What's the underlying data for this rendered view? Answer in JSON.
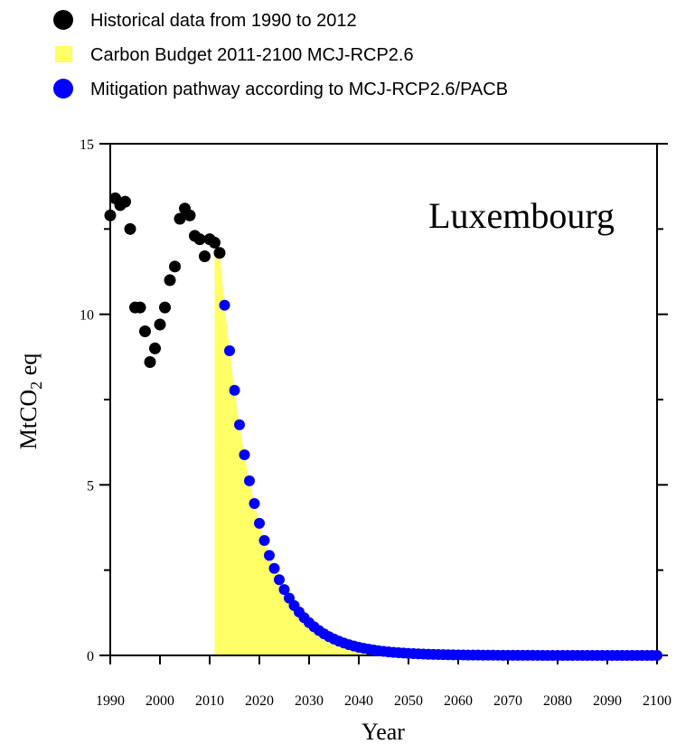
{
  "chart_data": {
    "type": "scatter",
    "annotation": "Luxembourg",
    "xlabel": "Year",
    "ylabel": {
      "main": "MtCO",
      "sub": "2",
      "suffix": " eq"
    },
    "xlim": [
      1990,
      2100
    ],
    "ylim": [
      0,
      15
    ],
    "x_ticks": [
      1990,
      2000,
      2010,
      2020,
      2030,
      2040,
      2050,
      2060,
      2070,
      2080,
      2090,
      2100
    ],
    "y_ticks": [
      0,
      5,
      10,
      15
    ],
    "legend_position": "top-left",
    "legend": [
      {
        "label": "Historical data from 1990 to 2012",
        "marker": "circle",
        "color": "#000000"
      },
      {
        "label": "Carbon Budget 2011-2100 MCJ-RCP2.6",
        "marker": "square",
        "color": "#ffff66"
      },
      {
        "label": "Mitigation pathway according to MCJ-RCP2.6/PACB",
        "marker": "circle",
        "color": "#0000ff"
      }
    ],
    "series": [
      {
        "name": "Historical data from 1990 to 2012",
        "color": "#000000",
        "x": [
          1990,
          1991,
          1992,
          1993,
          1994,
          1995,
          1996,
          1997,
          1998,
          1999,
          2000,
          2001,
          2002,
          2003,
          2004,
          2005,
          2006,
          2007,
          2008,
          2009,
          2010,
          2011,
          2012
        ],
        "y": [
          12.9,
          13.4,
          13.2,
          13.3,
          12.5,
          10.2,
          10.2,
          9.5,
          8.6,
          9.0,
          9.7,
          10.2,
          11.0,
          11.4,
          12.8,
          13.1,
          12.9,
          12.3,
          12.2,
          11.7,
          12.2,
          12.1,
          11.8
        ]
      },
      {
        "name": "Mitigation pathway according to MCJ-RCP2.6/PACB",
        "color": "#0000ff",
        "decay": {
          "x_start": 2012,
          "y_start": 11.8,
          "rate": 0.87,
          "x_end": 2100
        }
      },
      {
        "name": "Carbon Budget 2011-2100 MCJ-RCP2.6",
        "type": "area",
        "color": "#ffff66",
        "x_start": 2011,
        "y_start": 11.8,
        "follows": "Mitigation pathway according to MCJ-RCP2.6/PACB"
      }
    ]
  }
}
